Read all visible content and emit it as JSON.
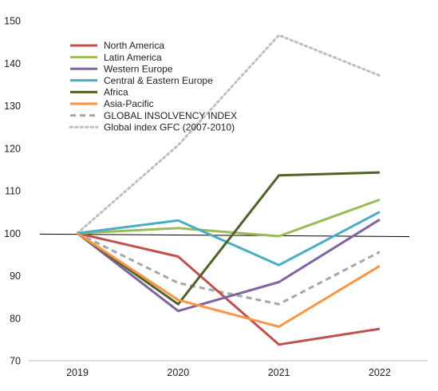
{
  "chart_data": {
    "type": "line",
    "title": "",
    "xlabel": "",
    "ylabel": "",
    "categories": [
      "2019",
      "2020",
      "2021",
      "2022"
    ],
    "ylim": [
      70,
      150
    ],
    "yticks": [
      70,
      80,
      90,
      100,
      110,
      120,
      130,
      140,
      150
    ],
    "grid": false,
    "legend_position": "top-left",
    "reference_line": {
      "from": 99.8,
      "to": 99.2,
      "color": "#000000"
    },
    "series": [
      {
        "name": "North America",
        "values": [
          100,
          94.5,
          73.8,
          77.5
        ],
        "color": "#c0504d",
        "style": "solid"
      },
      {
        "name": "Latin America",
        "values": [
          100,
          101.2,
          99.3,
          107.9
        ],
        "color": "#9bbb59",
        "style": "solid"
      },
      {
        "name": "Western Europe",
        "values": [
          100,
          81.7,
          88.5,
          103.2
        ],
        "color": "#8064a2",
        "style": "solid"
      },
      {
        "name": "Central & Eastern Europe",
        "values": [
          100,
          103,
          92.5,
          105
        ],
        "color": "#4bacc6",
        "style": "solid"
      },
      {
        "name": "Africa",
        "values": [
          100,
          83.3,
          113.6,
          114.3
        ],
        "color": "#4f6228",
        "style": "solid"
      },
      {
        "name": "Asia-Pacific",
        "values": [
          100,
          84.3,
          78,
          92.3
        ],
        "color": "#f79646",
        "style": "solid"
      },
      {
        "name": "GLOBAL INSOLVENCY INDEX",
        "values": [
          100,
          88.3,
          83.3,
          95.6
        ],
        "color": "#a6a6a6",
        "style": "dashed"
      },
      {
        "name": "Global index GFC (2007-2010)",
        "values": [
          100,
          120.7,
          146.6,
          137.1
        ],
        "color": "#bfbfbf",
        "style": "dotted"
      }
    ]
  }
}
